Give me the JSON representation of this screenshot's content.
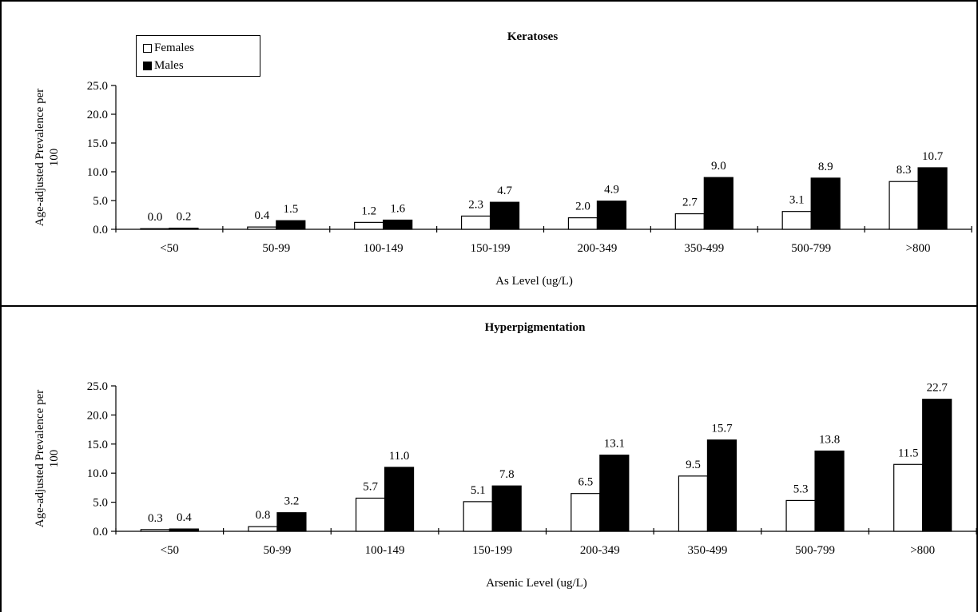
{
  "chart_data": [
    {
      "type": "bar",
      "title": "Keratoses",
      "xlabel": "As Level (ug/L)",
      "ylabel": "Age-adjusted Prevalence per 100",
      "ylim": [
        0,
        25
      ],
      "yticks": [
        "0.0",
        "5.0",
        "10.0",
        "15.0",
        "20.0",
        "25.0"
      ],
      "categories": [
        "<50",
        "50-99",
        "100-149",
        "150-199",
        "200-349",
        "350-499",
        "500-799",
        ">800"
      ],
      "series": [
        {
          "name": "Females",
          "color": "#ffffff",
          "values": [
            0.0,
            0.4,
            1.2,
            2.3,
            2.0,
            2.7,
            3.1,
            8.3
          ],
          "labels": [
            "0.0",
            "0.4",
            "1.2",
            "2.3",
            "2.0",
            "2.7",
            "3.1",
            "8.3"
          ]
        },
        {
          "name": "Males",
          "color": "#000000",
          "values": [
            0.2,
            1.5,
            1.6,
            4.7,
            4.9,
            9.0,
            8.9,
            10.7
          ],
          "labels": [
            "0.2",
            "1.5",
            "1.6",
            "4.7",
            "4.9",
            "9.0",
            "8.9",
            "10.7"
          ]
        }
      ],
      "legend": "top-left",
      "grid": false
    },
    {
      "type": "bar",
      "title": "Hyperpigmentation",
      "xlabel": "Arsenic Level (ug/L)",
      "ylabel": "Age-adjusted Prevalence per 100",
      "ylim": [
        0,
        25
      ],
      "yticks": [
        "0.0",
        "5.0",
        "10.0",
        "15.0",
        "20.0",
        "25.0"
      ],
      "categories": [
        "<50",
        "50-99",
        "100-149",
        "150-199",
        "200-349",
        "350-499",
        "500-799",
        ">800"
      ],
      "series": [
        {
          "name": "Females",
          "color": "#ffffff",
          "values": [
            0.3,
            0.8,
            5.7,
            5.1,
            6.5,
            9.5,
            5.3,
            11.5
          ],
          "labels": [
            "0.3",
            "0.8",
            "5.7",
            "5.1",
            "6.5",
            "9.5",
            "5.3",
            "11.5"
          ]
        },
        {
          "name": "Males",
          "color": "#000000",
          "values": [
            0.4,
            3.2,
            11.0,
            7.8,
            13.1,
            15.7,
            13.8,
            22.7
          ],
          "labels": [
            "0.4",
            "3.2",
            "11.0",
            "7.8",
            "13.1",
            "15.7",
            "13.8",
            "22.7"
          ]
        }
      ],
      "legend": "none",
      "grid": false
    }
  ]
}
